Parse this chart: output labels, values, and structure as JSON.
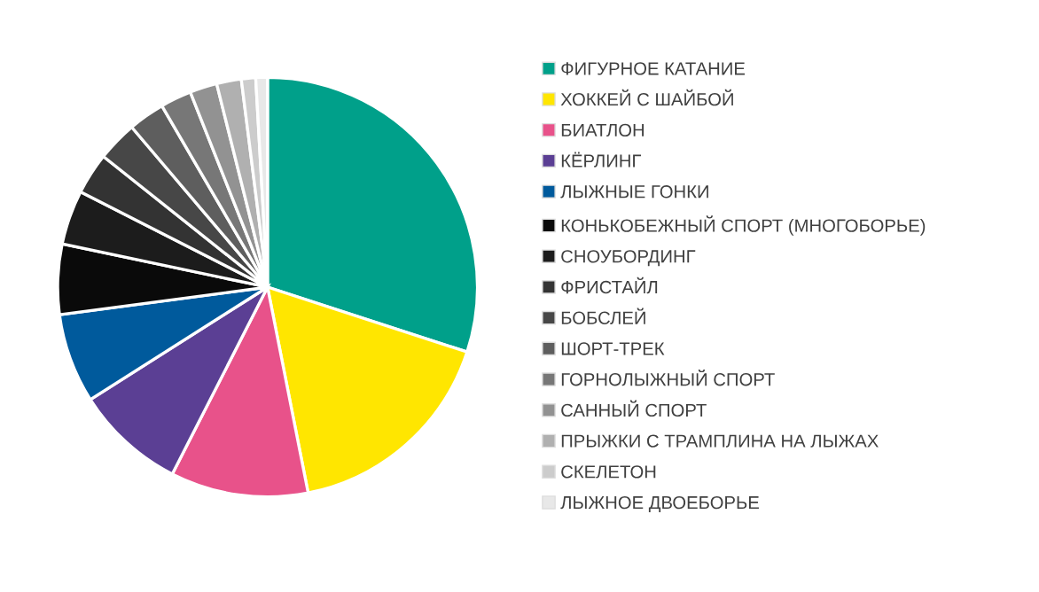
{
  "chart_data": {
    "type": "pie",
    "categories": [
      "ФИГУРНОЕ КАТАНИЕ",
      "ХОККЕЙ С ШАЙБОЙ",
      "БИАТЛОН",
      "КЁРЛИНГ",
      "ЛЫЖНЫЕ ГОНКИ",
      "КОНЬКОБЕЖНЫЙ СПОРТ (МНОГОБОРЬЕ)",
      "СНОУБОРДИНГ",
      "ФРИСТАЙЛ",
      "БОБСЛЕЙ",
      "ШОРТ-ТРЕК",
      "ГОРНОЛЫЖНЫЙ СПОРТ",
      "САННЫЙ СПОРТ",
      "ПРЫЖКИ С ТРАМПЛИНА НА ЛЫЖАХ",
      "СКЕЛЕТОН",
      "ЛЫЖНОЕ ДВОЕБОРЬЕ"
    ],
    "values": [
      30.0,
      16.9,
      10.6,
      8.5,
      6.9,
      5.4,
      4.2,
      3.2,
      3.1,
      2.8,
      2.4,
      2.1,
      1.9,
      1.1,
      0.9
    ],
    "colors": [
      "#00a08a",
      "#ffe600",
      "#e8528a",
      "#5b3f94",
      "#005a9c",
      "#0a0a0a",
      "#1c1c1c",
      "#333333",
      "#474747",
      "#5e5e5e",
      "#777777",
      "#929292",
      "#b0b0b0",
      "#cccccc",
      "#e8e8e8"
    ],
    "legend": "right"
  }
}
